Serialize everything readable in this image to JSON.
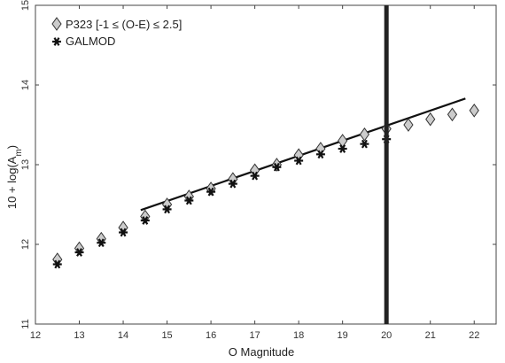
{
  "chart_data": {
    "type": "scatter",
    "xlabel": "O Magnitude",
    "ylabel_main": "10 + log(A",
    "ylabel_sub": "m",
    "ylabel_close": ")",
    "xlim": [
      12,
      22.5
    ],
    "ylim": [
      11,
      15
    ],
    "x_ticks": [
      12,
      13,
      14,
      15,
      16,
      17,
      18,
      19,
      20,
      21,
      22
    ],
    "y_ticks": [
      11,
      12,
      13,
      14,
      15
    ],
    "legend_position": "top-left",
    "series": [
      {
        "name": "P323  [-1 ≤ (O-E) ≤ 2.5]",
        "marker": "diamond",
        "color": "#cccccc",
        "x": [
          12.5,
          13,
          13.5,
          14,
          14.5,
          15,
          15.5,
          16,
          16.5,
          17,
          17.5,
          18,
          18.5,
          19,
          19.5,
          20,
          20.5,
          21,
          21.5,
          22
        ],
        "y": [
          11.81,
          11.95,
          12.07,
          12.21,
          12.35,
          12.5,
          12.6,
          12.7,
          12.82,
          12.93,
          13.0,
          13.12,
          13.2,
          13.3,
          13.38,
          13.45,
          13.5,
          13.57,
          13.63,
          13.68
        ]
      },
      {
        "name": "GALMOD",
        "marker": "asterisk",
        "color": "#111111",
        "x": [
          12.5,
          13,
          13.5,
          14,
          14.5,
          15,
          15.5,
          16,
          16.5,
          17,
          17.5,
          18,
          18.5,
          19,
          19.5,
          20
        ],
        "y": [
          11.75,
          11.9,
          12.02,
          12.15,
          12.3,
          12.44,
          12.55,
          12.66,
          12.76,
          12.86,
          12.97,
          13.05,
          13.13,
          13.2,
          13.26,
          13.32
        ]
      }
    ],
    "fit_line": {
      "x": [
        14.4,
        21.8
      ],
      "y": [
        12.43,
        13.83
      ]
    },
    "vertical_line": {
      "x": 20
    }
  }
}
